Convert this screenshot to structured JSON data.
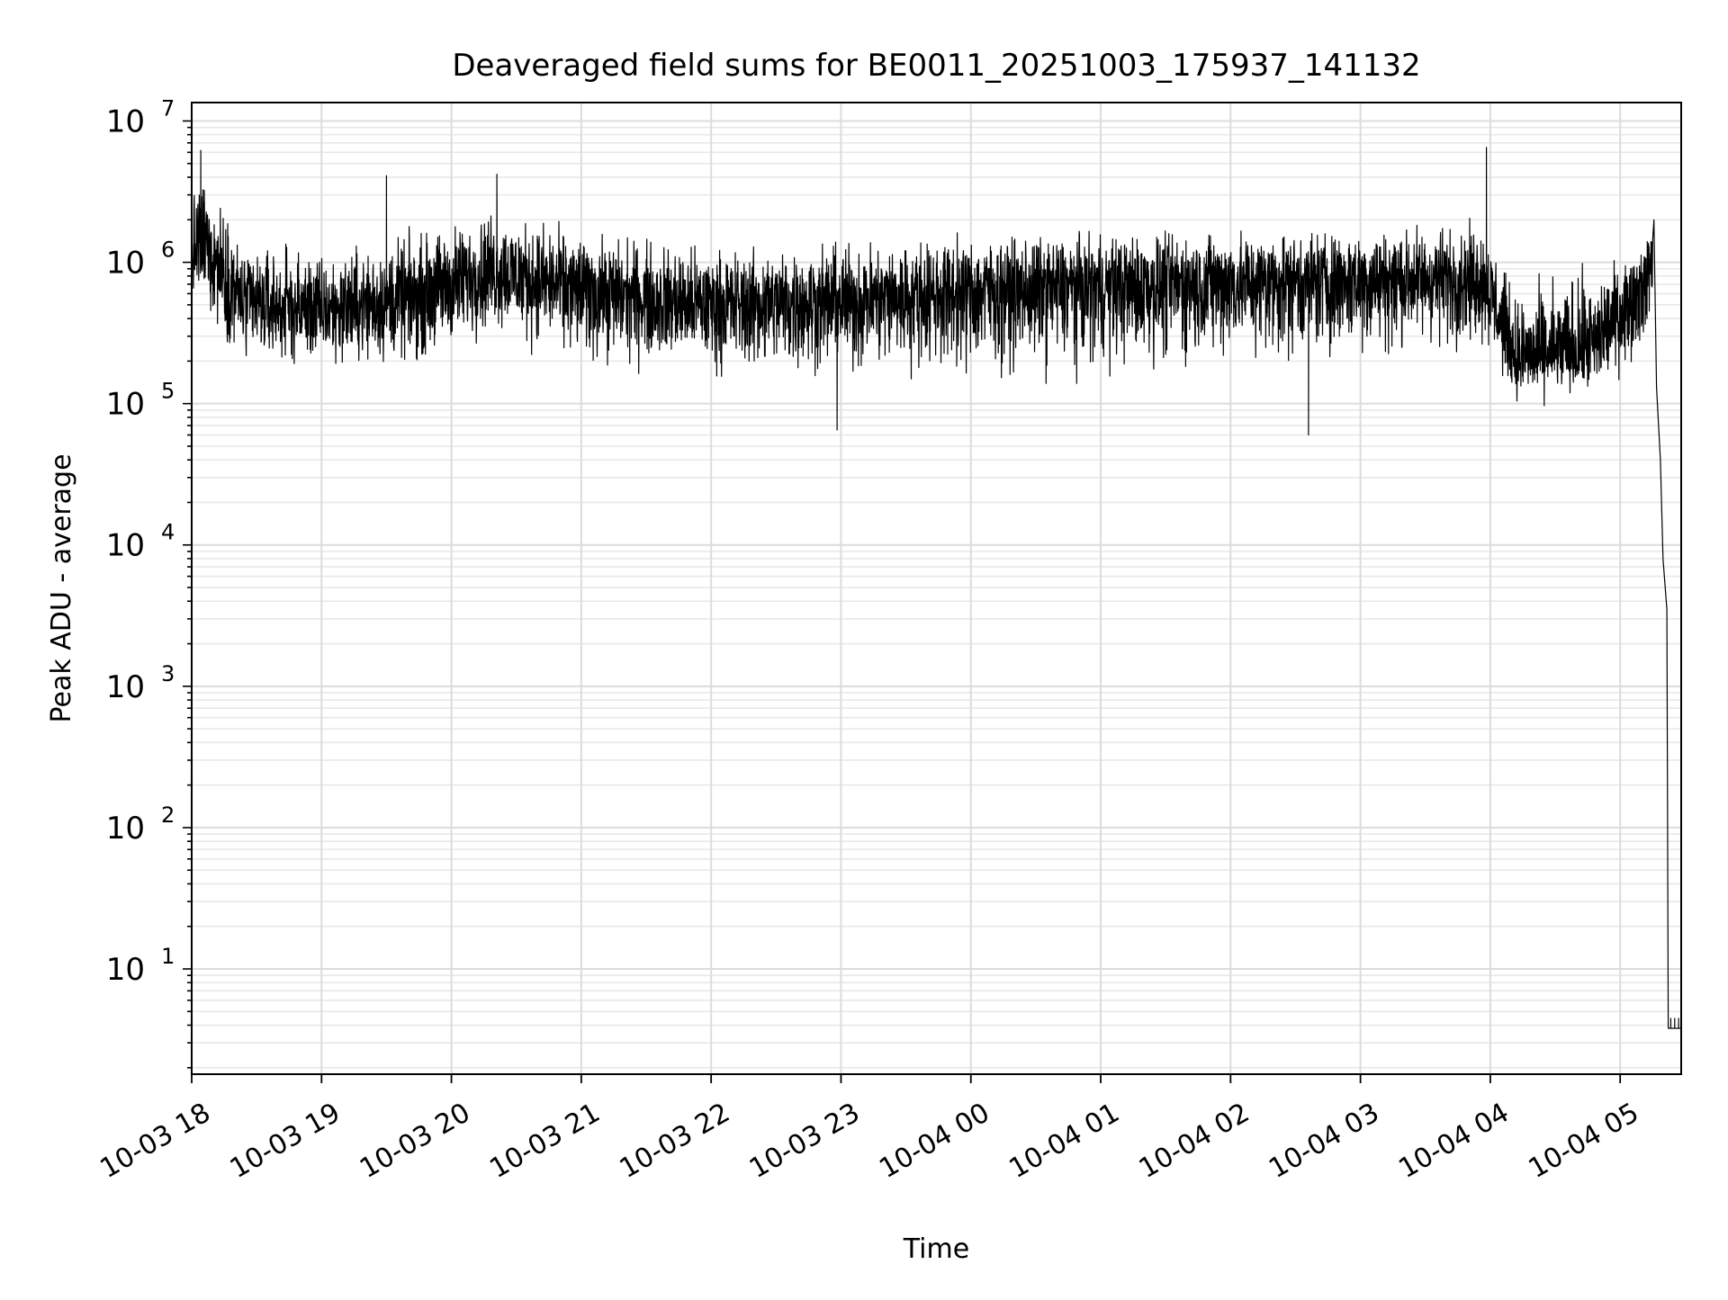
{
  "chart_data": {
    "type": "line",
    "title": "Deaveraged field sums for BE0011_20251003_175937_141132",
    "xlabel": "Time",
    "ylabel": "Peak ADU - average",
    "yscale": "log",
    "ylim": [
      1.8,
      13500000
    ],
    "xlim_hours_from_2025_10_03_18_00": [
      0.0,
      11.47
    ],
    "grid": true,
    "x_ticks": [
      {
        "hour": 0,
        "label": "10-03 18"
      },
      {
        "hour": 1,
        "label": "10-03 19"
      },
      {
        "hour": 2,
        "label": "10-03 20"
      },
      {
        "hour": 3,
        "label": "10-03 21"
      },
      {
        "hour": 4,
        "label": "10-03 22"
      },
      {
        "hour": 5,
        "label": "10-03 23"
      },
      {
        "hour": 6,
        "label": "10-04 00"
      },
      {
        "hour": 7,
        "label": "10-04 01"
      },
      {
        "hour": 8,
        "label": "10-04 02"
      },
      {
        "hour": 9,
        "label": "10-04 03"
      },
      {
        "hour": 10,
        "label": "10-04 04"
      },
      {
        "hour": 11,
        "label": "10-04 05"
      }
    ],
    "y_ticks": [
      {
        "value": 10,
        "base": "10",
        "exp": "1"
      },
      {
        "value": 100,
        "base": "10",
        "exp": "2"
      },
      {
        "value": 1000,
        "base": "10",
        "exp": "3"
      },
      {
        "value": 10000,
        "base": "10",
        "exp": "4"
      },
      {
        "value": 100000,
        "base": "10",
        "exp": "5"
      },
      {
        "value": 1000000,
        "base": "10",
        "exp": "6"
      },
      {
        "value": 10000000,
        "base": "10",
        "exp": "7"
      }
    ],
    "series": [
      {
        "name": "field sums",
        "color": "#000000",
        "note": "dense noisy trace; envelope estimated from the figure (hours from 10-03 18:00, values in ADU)",
        "envelope": [
          {
            "t": 0.0,
            "low": 400000,
            "mid": 1200000,
            "high": 3500000
          },
          {
            "t": 0.1,
            "low": 350000,
            "mid": 1400000,
            "high": 6000000
          },
          {
            "t": 0.4,
            "low": 150000,
            "mid": 500000,
            "high": 1800000
          },
          {
            "t": 1.0,
            "low": 150000,
            "mid": 450000,
            "high": 1500000
          },
          {
            "t": 1.7,
            "low": 150000,
            "mid": 550000,
            "high": 2000000
          },
          {
            "t": 2.3,
            "low": 250000,
            "mid": 900000,
            "high": 3000000
          },
          {
            "t": 3.0,
            "low": 150000,
            "mid": 650000,
            "high": 2000000
          },
          {
            "t": 4.0,
            "low": 130000,
            "mid": 500000,
            "high": 1600000
          },
          {
            "t": 5.0,
            "low": 120000,
            "mid": 550000,
            "high": 1700000
          },
          {
            "t": 6.0,
            "low": 120000,
            "mid": 650000,
            "high": 1900000
          },
          {
            "t": 7.0,
            "low": 130000,
            "mid": 700000,
            "high": 2000000
          },
          {
            "t": 8.0,
            "low": 150000,
            "mid": 750000,
            "high": 2100000
          },
          {
            "t": 9.0,
            "low": 150000,
            "mid": 800000,
            "high": 2100000
          },
          {
            "t": 9.95,
            "low": 200000,
            "mid": 800000,
            "high": 2300000
          },
          {
            "t": 10.2,
            "low": 90000,
            "mid": 200000,
            "high": 800000
          },
          {
            "t": 10.8,
            "low": 90000,
            "mid": 250000,
            "high": 1200000
          },
          {
            "t": 11.2,
            "low": 200000,
            "mid": 800000,
            "high": 1600000
          },
          {
            "t": 11.25,
            "low": 400000,
            "mid": 1200000,
            "high": 2300000
          }
        ],
        "spikes": [
          {
            "t": 0.07,
            "value": 6200000
          },
          {
            "t": 1.5,
            "value": 4100000
          },
          {
            "t": 2.35,
            "value": 4200000
          },
          {
            "t": 9.97,
            "value": 6500000
          }
        ],
        "dips": [
          {
            "t": 4.97,
            "value": 65000
          },
          {
            "t": 8.6,
            "value": 60000
          }
        ],
        "dropoff": [
          {
            "t": 11.26,
            "value": 2000000
          },
          {
            "t": 11.28,
            "value": 130000
          },
          {
            "t": 11.31,
            "value": 40000
          },
          {
            "t": 11.33,
            "value": 8000
          },
          {
            "t": 11.36,
            "value": 3500
          },
          {
            "t": 11.37,
            "value": 3.8
          },
          {
            "t": 11.47,
            "value": 3.8
          }
        ]
      }
    ]
  }
}
